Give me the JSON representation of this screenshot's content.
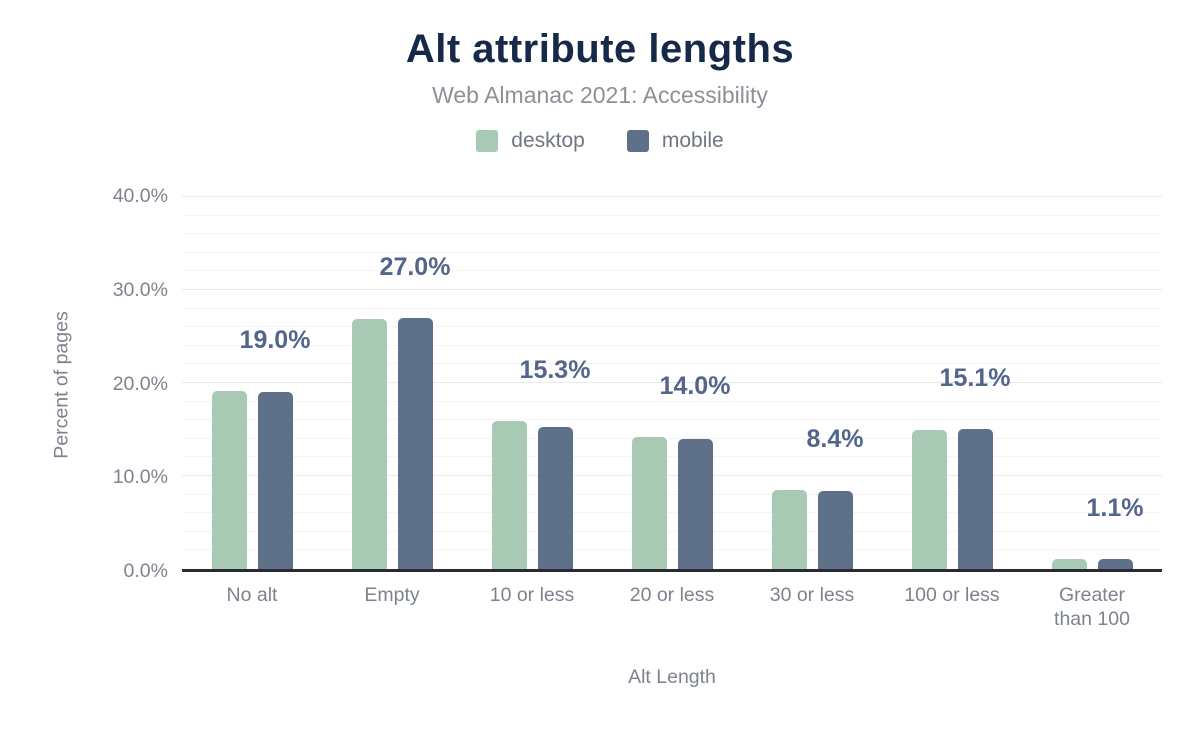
{
  "figure": {
    "title": "Alt attribute lengths",
    "subtitle": "Web Almanac 2021: Accessibility"
  },
  "chart_data": {
    "type": "bar",
    "title": "Alt attribute lengths",
    "subtitle": "Web Almanac 2021: Accessibility",
    "xlabel": "Alt Length",
    "ylabel": "Percent of pages",
    "ylim": [
      0,
      40
    ],
    "yticks": [
      {
        "value": 0,
        "label": "0.0%"
      },
      {
        "value": 10,
        "label": "10.0%"
      },
      {
        "value": 20,
        "label": "20.0%"
      },
      {
        "value": 30,
        "label": "30.0%"
      },
      {
        "value": 40,
        "label": "40.0%"
      }
    ],
    "grid": {
      "major_step": 10,
      "minor_step": 2,
      "minor_on": true
    },
    "legend_position": "top",
    "categories": [
      "No alt",
      "Empty",
      "10 or less",
      "20 or less",
      "30 or less",
      "100 or less",
      "Greater than 100"
    ],
    "series": [
      {
        "name": "desktop",
        "color": "#a8cab4",
        "values": [
          19.1,
          26.9,
          15.9,
          14.2,
          8.5,
          14.9,
          1.1
        ]
      },
      {
        "name": "mobile",
        "color": "#5f7189",
        "values": [
          19.0,
          27.0,
          15.3,
          14.0,
          8.4,
          15.1,
          1.1
        ]
      }
    ],
    "data_labels": {
      "series": "mobile",
      "values": [
        "19.0%",
        "27.0%",
        "15.3%",
        "14.0%",
        "8.4%",
        "15.1%",
        "1.1%"
      ],
      "color": "#53658a"
    },
    "colors": {
      "title": "#172948",
      "subtitle": "#8b9199",
      "axis_text": "#7d838e",
      "legend_text": "#6e7681",
      "baseline": "#272b32",
      "grid_major": "#e7e9eb",
      "grid_minor": "#f4f4f6",
      "background": "#ffffff"
    }
  }
}
